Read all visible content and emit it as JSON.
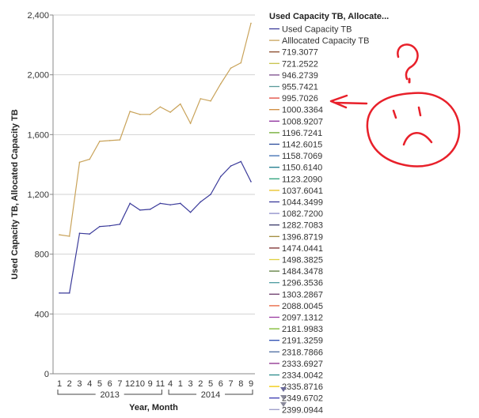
{
  "chart_data": {
    "type": "line",
    "ylabel": "Used Capacity TB, Allocated Capacity TB",
    "xlabel": "Year, Month",
    "ylim": [
      0,
      2400
    ],
    "yticks": [
      0,
      400,
      800,
      1200,
      1600,
      2000,
      2400
    ],
    "ytick_labels": [
      "0",
      "400",
      "800",
      "1,200",
      "1,600",
      "2,000",
      "2,400"
    ],
    "grid": true,
    "x": [
      "1",
      "2",
      "3",
      "4",
      "5",
      "6",
      "7",
      "12",
      "10",
      "9",
      "11",
      "4",
      "1",
      "3",
      "2",
      "5",
      "6",
      "7",
      "8",
      "9"
    ],
    "year_groups": [
      {
        "label": "2013",
        "start": 0,
        "end": 10
      },
      {
        "label": "2014",
        "start": 11,
        "end": 19
      }
    ],
    "series": [
      {
        "name": "Used Capacity TB",
        "color": "#3a3a9a",
        "values": [
          540,
          540,
          940,
          935,
          985,
          990,
          1000,
          1140,
          1095,
          1100,
          1140,
          1130,
          1140,
          1080,
          1150,
          1200,
          1320,
          1390,
          1420,
          1285
        ]
      },
      {
        "name": "Alllocated Capacity TB",
        "color": "#c9a35a",
        "values": [
          930,
          920,
          1415,
          1435,
          1555,
          1560,
          1565,
          1755,
          1735,
          1735,
          1785,
          1750,
          1805,
          1675,
          1840,
          1825,
          1940,
          2045,
          2080,
          2345
        ]
      }
    ],
    "legend": {
      "title": "Used Capacity TB, Allocate...",
      "placement": "right",
      "entries": [
        {
          "label": "Used Capacity TB",
          "color": "#3a3a9a"
        },
        {
          "label": "Alllocated Capacity TB",
          "color": "#c9a35a"
        },
        {
          "label": "719.3077",
          "color": "#8a4a2a"
        },
        {
          "label": "721.2522",
          "color": "#c8c24a"
        },
        {
          "label": "946.2739",
          "color": "#7a4a8a"
        },
        {
          "label": "955.7421",
          "color": "#5a9a9a"
        },
        {
          "label": "995.7026",
          "color": "#e0463a"
        },
        {
          "label": "1000.3364",
          "color": "#d08a3a"
        },
        {
          "label": "1008.9207",
          "color": "#8a2a9a"
        },
        {
          "label": "1196.7241",
          "color": "#6aa82a"
        },
        {
          "label": "1142.6015",
          "color": "#2a4a9a"
        },
        {
          "label": "1158.7069",
          "color": "#3a6ab0"
        },
        {
          "label": "1150.6140",
          "color": "#1a7a8a"
        },
        {
          "label": "1123.2090",
          "color": "#2aa07a"
        },
        {
          "label": "1037.6041",
          "color": "#e8c020"
        },
        {
          "label": "1044.3499",
          "color": "#3a3a9a"
        },
        {
          "label": "1082.7200",
          "color": "#8a8ac8"
        },
        {
          "label": "1282.7083",
          "color": "#3a3a6a"
        },
        {
          "label": "1396.8719",
          "color": "#a08a3a"
        },
        {
          "label": "1474.0441",
          "color": "#7a2a2a"
        },
        {
          "label": "1498.3825",
          "color": "#e0d040"
        },
        {
          "label": "1484.3478",
          "color": "#5a7a3a"
        },
        {
          "label": "1296.3536",
          "color": "#4a9aa0"
        },
        {
          "label": "1303.2867",
          "color": "#6a3a6a"
        },
        {
          "label": "2088.0045",
          "color": "#e8603a"
        },
        {
          "label": "2097.1312",
          "color": "#9a3aa0"
        },
        {
          "label": "2181.9983",
          "color": "#7ab82a"
        },
        {
          "label": "2191.3259",
          "color": "#2a4ab0"
        },
        {
          "label": "2318.7866",
          "color": "#4a6aa0"
        },
        {
          "label": "2333.6927",
          "color": "#8a2a8a"
        },
        {
          "label": "2334.0042",
          "color": "#2a8a8a"
        },
        {
          "label": "2335.8716",
          "color": "#f0c800"
        },
        {
          "label": "2349.6702",
          "color": "#3a3ab0"
        },
        {
          "label": "2399.0944",
          "color": "#9a9ac8"
        }
      ]
    },
    "annotation": {
      "color": "#e8202a",
      "icon": "sad-face-question-drawing"
    }
  },
  "icons": {
    "scroll_down": "triangle-down-icon"
  }
}
